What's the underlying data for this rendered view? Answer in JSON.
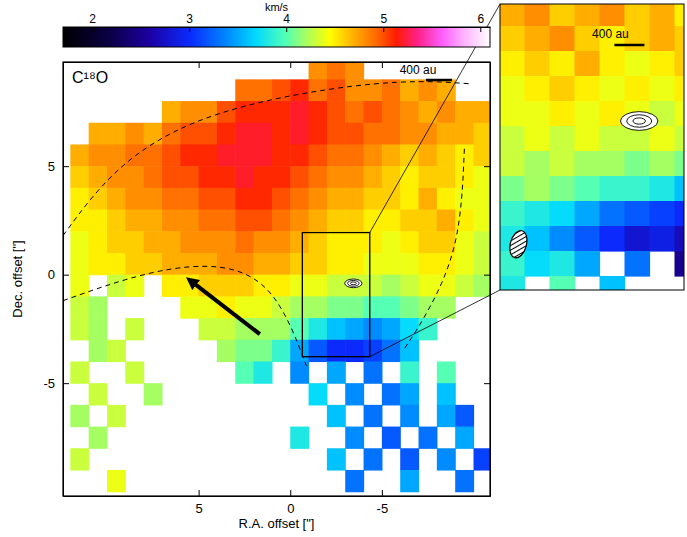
{
  "chart_data": {
    "type": "heatmap",
    "title": "C¹⁸O",
    "x_label": "R.A. offset [\"]",
    "y_label": "Dec. offset [\"]",
    "xlim": [
      12.4,
      -10.9
    ],
    "ylim": [
      -10.2,
      9.8
    ],
    "xticks": [
      5,
      0,
      -5
    ],
    "yticks": [
      -5,
      0,
      5
    ],
    "annotations": [
      "400 au",
      "400 au"
    ],
    "colorbar": {
      "label": "km/s",
      "range": [
        1.7,
        6.1
      ],
      "ticks": [
        2,
        3,
        4,
        5,
        6
      ]
    },
    "x": [
      11.5,
      10.5,
      9.5,
      8.5,
      7.5,
      6.5,
      5.5,
      4.5,
      3.5,
      2.5,
      1.5,
      0.5,
      -0.5,
      -1.5,
      -2.5,
      -3.5,
      -4.5,
      -5.5,
      -6.5,
      -7.5,
      -8.5,
      -9.5,
      -10.5
    ],
    "y": [
      9.5,
      8.5,
      7.5,
      6.5,
      5.5,
      4.5,
      3.5,
      2.5,
      1.5,
      0.5,
      -0.5,
      -1.5,
      -2.5,
      -3.5,
      -4.5,
      -5.5,
      -6.5,
      -7.5,
      -8.5,
      -9.5
    ],
    "values": [
      [
        null,
        null,
        null,
        null,
        null,
        null,
        null,
        null,
        null,
        null,
        null,
        null,
        null,
        4.8,
        4.9,
        4.8,
        null,
        null,
        null,
        null,
        null,
        null,
        null
      ],
      [
        null,
        null,
        null,
        null,
        null,
        null,
        null,
        null,
        null,
        4.9,
        4.9,
        5.0,
        5.1,
        4.9,
        5.0,
        4.8,
        4.8,
        4.9,
        4.7,
        4.8,
        4.7,
        null,
        null
      ],
      [
        null,
        null,
        null,
        null,
        null,
        4.7,
        4.8,
        4.8,
        5.0,
        5.1,
        5.1,
        5.1,
        5.2,
        5.1,
        5.0,
        4.9,
        5.0,
        4.9,
        4.8,
        4.7,
        4.8,
        4.7,
        4.7
      ],
      [
        null,
        4.7,
        4.7,
        4.8,
        4.7,
        4.9,
        5.0,
        5.0,
        5.1,
        5.2,
        5.2,
        5.1,
        5.2,
        5.1,
        5.0,
        5.0,
        4.9,
        4.9,
        4.8,
        4.8,
        4.7,
        4.7,
        4.6
      ],
      [
        4.7,
        4.8,
        4.8,
        4.9,
        4.9,
        5.0,
        5.1,
        5.1,
        5.2,
        5.2,
        5.2,
        5.1,
        5.1,
        5.0,
        4.9,
        4.9,
        4.8,
        4.7,
        4.6,
        4.7,
        4.6,
        4.5,
        4.6
      ],
      [
        4.6,
        4.7,
        4.8,
        4.8,
        4.9,
        5.0,
        5.0,
        5.1,
        5.1,
        5.2,
        5.1,
        5.1,
        5.0,
        4.9,
        4.8,
        4.8,
        4.7,
        4.6,
        4.5,
        4.6,
        4.6,
        4.5,
        4.4
      ],
      [
        4.5,
        4.6,
        4.7,
        4.8,
        4.8,
        4.9,
        4.9,
        5.0,
        5.0,
        5.1,
        5.1,
        5.0,
        4.9,
        4.8,
        4.7,
        4.7,
        4.6,
        4.6,
        4.5,
        4.7,
        4.5,
        4.4,
        4.4
      ],
      [
        4.5,
        4.5,
        4.6,
        4.7,
        4.7,
        4.8,
        4.8,
        4.9,
        4.9,
        5.0,
        5.0,
        4.9,
        4.8,
        4.7,
        4.6,
        4.6,
        4.5,
        4.5,
        4.6,
        4.6,
        4.7,
        4.5,
        4.4
      ],
      [
        4.4,
        4.5,
        4.6,
        4.6,
        4.7,
        4.7,
        4.8,
        4.8,
        4.8,
        4.9,
        4.8,
        4.8,
        4.7,
        4.6,
        4.5,
        4.5,
        4.5,
        4.4,
        4.5,
        4.6,
        4.6,
        4.4,
        4.3
      ],
      [
        4.4,
        4.5,
        4.5,
        4.6,
        4.6,
        4.7,
        4.7,
        4.7,
        4.8,
        4.8,
        4.7,
        4.7,
        4.6,
        4.6,
        4.5,
        4.5,
        4.4,
        4.4,
        4.4,
        4.5,
        4.5,
        4.4,
        4.3
      ],
      [
        4.4,
        null,
        4.3,
        4.4,
        null,
        4.5,
        4.5,
        4.6,
        4.6,
        4.6,
        4.5,
        4.5,
        4.4,
        4.4,
        4.3,
        4.3,
        4.3,
        4.2,
        4.3,
        4.4,
        4.4,
        4.3,
        4.2
      ],
      [
        4.3,
        4.2,
        null,
        null,
        null,
        null,
        4.4,
        4.4,
        4.5,
        4.4,
        4.4,
        4.3,
        4.2,
        4.2,
        4.1,
        4.1,
        4.0,
        4.0,
        4.1,
        4.2,
        4.2,
        null,
        null
      ],
      [
        4.3,
        4.2,
        null,
        4.3,
        null,
        null,
        null,
        4.3,
        4.3,
        4.2,
        4.2,
        4.2,
        4.0,
        3.8,
        3.6,
        3.5,
        3.4,
        3.5,
        3.7,
        3.9,
        null,
        null,
        null
      ],
      [
        null,
        4.2,
        4.3,
        null,
        null,
        null,
        null,
        null,
        4.2,
        4.1,
        4.1,
        3.9,
        3.5,
        3.2,
        3.0,
        3.0,
        3.1,
        3.3,
        3.6,
        null,
        null,
        null,
        null
      ],
      [
        4.3,
        null,
        null,
        4.3,
        null,
        null,
        null,
        null,
        null,
        4.0,
        3.8,
        null,
        3.4,
        null,
        3.5,
        null,
        3.3,
        null,
        3.9,
        null,
        4.0,
        null,
        null
      ],
      [
        null,
        4.3,
        null,
        null,
        4.2,
        null,
        null,
        null,
        null,
        null,
        null,
        null,
        null,
        3.7,
        null,
        3.4,
        null,
        3.3,
        3.5,
        null,
        3.6,
        null,
        null
      ],
      [
        4.2,
        null,
        4.3,
        null,
        null,
        null,
        null,
        null,
        null,
        null,
        null,
        null,
        null,
        null,
        3.6,
        null,
        3.3,
        null,
        3.4,
        null,
        3.5,
        3.2,
        null
      ],
      [
        null,
        4.2,
        null,
        null,
        null,
        null,
        null,
        null,
        null,
        null,
        null,
        null,
        3.8,
        null,
        null,
        3.4,
        null,
        3.2,
        null,
        3.3,
        null,
        3.5,
        null
      ],
      [
        4.3,
        null,
        null,
        null,
        null,
        null,
        null,
        null,
        null,
        null,
        null,
        null,
        null,
        null,
        3.6,
        null,
        3.3,
        null,
        3.2,
        null,
        3.4,
        null,
        3.1
      ],
      [
        null,
        null,
        4.4,
        null,
        null,
        null,
        null,
        null,
        null,
        null,
        null,
        null,
        null,
        null,
        null,
        3.3,
        null,
        null,
        3.5,
        null,
        null,
        3.3,
        null
      ]
    ],
    "inset": {
      "xlim": [
        -0.66,
        -4.34
      ],
      "ylim": [
        -3.78,
        1.94
      ],
      "x": [
        -0.9,
        -1.4,
        -1.9,
        -2.4,
        -2.9,
        -3.4,
        -3.9,
        -4.4
      ],
      "y": [
        1.75,
        1.25,
        0.75,
        0.25,
        -0.25,
        -0.75,
        -1.25,
        -1.75,
        -2.25,
        -2.75,
        -3.25,
        -3.75
      ],
      "values": [
        [
          4.7,
          4.8,
          4.6,
          4.7,
          4.8,
          4.6,
          4.7,
          4.5
        ],
        [
          4.6,
          4.7,
          4.8,
          4.6,
          4.5,
          4.6,
          4.7,
          4.6
        ],
        [
          4.5,
          4.6,
          4.5,
          4.7,
          4.5,
          4.4,
          4.5,
          4.6
        ],
        [
          4.4,
          4.5,
          4.6,
          4.5,
          4.4,
          4.5,
          4.4,
          4.5
        ],
        [
          4.4,
          4.4,
          4.5,
          4.4,
          4.5,
          4.4,
          4.3,
          4.4
        ],
        [
          4.3,
          4.4,
          4.3,
          4.4,
          4.3,
          4.3,
          4.4,
          4.3
        ],
        [
          4.3,
          4.2,
          4.3,
          4.2,
          4.2,
          4.1,
          4.2,
          4.1
        ],
        [
          4.1,
          4.2,
          4.1,
          4.0,
          3.9,
          3.9,
          3.8,
          3.6
        ],
        [
          3.9,
          3.8,
          3.7,
          3.5,
          3.3,
          3.2,
          3.1,
          3.0
        ],
        [
          3.8,
          3.6,
          3.4,
          3.2,
          3.0,
          2.8,
          2.9,
          2.7
        ],
        [
          3.9,
          3.7,
          3.8,
          3.5,
          null,
          3.3,
          null,
          2.5
        ],
        [
          3.8,
          null,
          4.0,
          null,
          3.6,
          null,
          null,
          null
        ]
      ]
    }
  }
}
